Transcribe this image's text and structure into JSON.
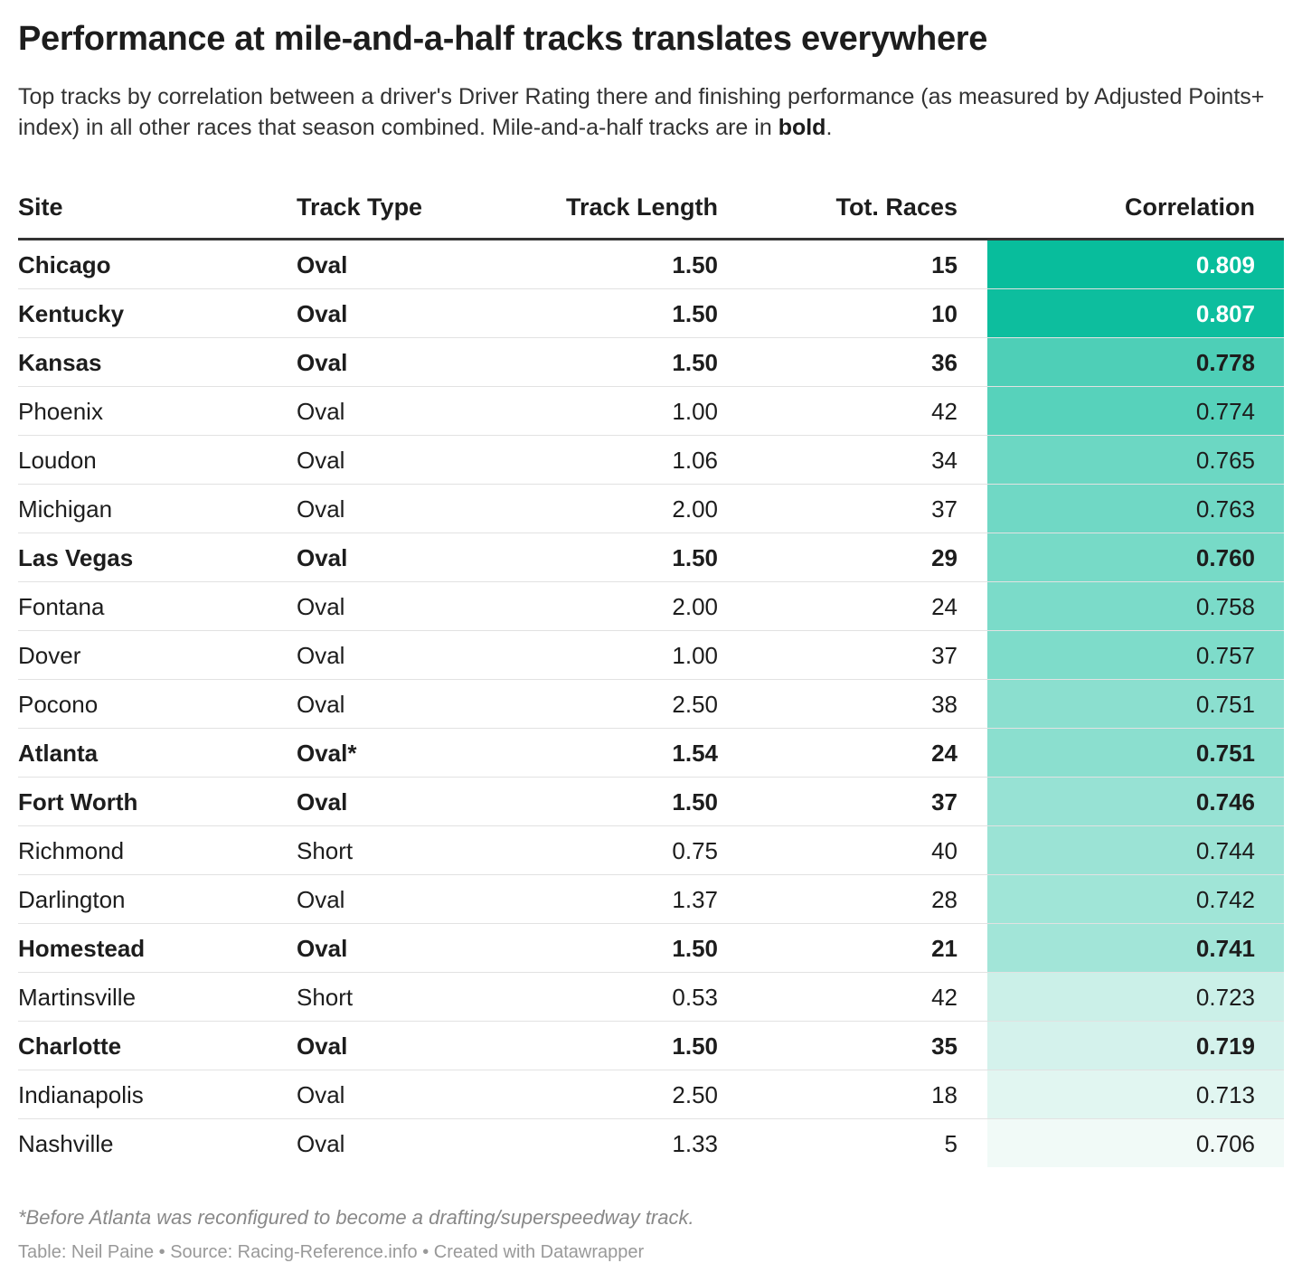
{
  "title": "Performance at mile-and-a-half tracks translates everywhere",
  "subtitle": {
    "text_before": "Top tracks by correlation between a driver's Driver Rating there and finishing performance (as measured by Adjusted Points+ index) in all other races that season combined. Mile-and-a-half tracks are in ",
    "bold_word": "bold",
    "text_after": "."
  },
  "chart_data": {
    "type": "table",
    "columns": [
      "Site",
      "Track Type",
      "Track Length",
      "Tot. Races",
      "Correlation"
    ],
    "rows": [
      {
        "site": "Chicago",
        "type": "Oval",
        "length": "1.50",
        "races": "15",
        "corr": "0.809",
        "bold": true
      },
      {
        "site": "Kentucky",
        "type": "Oval",
        "length": "1.50",
        "races": "10",
        "corr": "0.807",
        "bold": true
      },
      {
        "site": "Kansas",
        "type": "Oval",
        "length": "1.50",
        "races": "36",
        "corr": "0.778",
        "bold": true
      },
      {
        "site": "Phoenix",
        "type": "Oval",
        "length": "1.00",
        "races": "42",
        "corr": "0.774",
        "bold": false
      },
      {
        "site": "Loudon",
        "type": "Oval",
        "length": "1.06",
        "races": "34",
        "corr": "0.765",
        "bold": false
      },
      {
        "site": "Michigan",
        "type": "Oval",
        "length": "2.00",
        "races": "37",
        "corr": "0.763",
        "bold": false
      },
      {
        "site": "Las Vegas",
        "type": "Oval",
        "length": "1.50",
        "races": "29",
        "corr": "0.760",
        "bold": true
      },
      {
        "site": "Fontana",
        "type": "Oval",
        "length": "2.00",
        "races": "24",
        "corr": "0.758",
        "bold": false
      },
      {
        "site": "Dover",
        "type": "Oval",
        "length": "1.00",
        "races": "37",
        "corr": "0.757",
        "bold": false
      },
      {
        "site": "Pocono",
        "type": "Oval",
        "length": "2.50",
        "races": "38",
        "corr": "0.751",
        "bold": false
      },
      {
        "site": "Atlanta",
        "type": "Oval*",
        "length": "1.54",
        "races": "24",
        "corr": "0.751",
        "bold": true
      },
      {
        "site": "Fort Worth",
        "type": "Oval",
        "length": "1.50",
        "races": "37",
        "corr": "0.746",
        "bold": true
      },
      {
        "site": "Richmond",
        "type": "Short",
        "length": "0.75",
        "races": "40",
        "corr": "0.744",
        "bold": false
      },
      {
        "site": "Darlington",
        "type": "Oval",
        "length": "1.37",
        "races": "28",
        "corr": "0.742",
        "bold": false
      },
      {
        "site": "Homestead",
        "type": "Oval",
        "length": "1.50",
        "races": "21",
        "corr": "0.741",
        "bold": true
      },
      {
        "site": "Martinsville",
        "type": "Short",
        "length": "0.53",
        "races": "42",
        "corr": "0.723",
        "bold": false
      },
      {
        "site": "Charlotte",
        "type": "Oval",
        "length": "1.50",
        "races": "35",
        "corr": "0.719",
        "bold": true
      },
      {
        "site": "Indianapolis",
        "type": "Oval",
        "length": "2.50",
        "races": "18",
        "corr": "0.713",
        "bold": false
      },
      {
        "site": "Nashville",
        "type": "Oval",
        "length": "1.33",
        "races": "5",
        "corr": "0.706",
        "bold": false
      }
    ],
    "heat_colors": [
      "#f1faf7",
      "#08bd9c"
    ]
  },
  "footnote": "*Before Atlanta was reconfigured to become a drafting/superspeedway track.",
  "credit": "Table: Neil Paine • Source: Racing-Reference.info • Created with Datawrapper"
}
